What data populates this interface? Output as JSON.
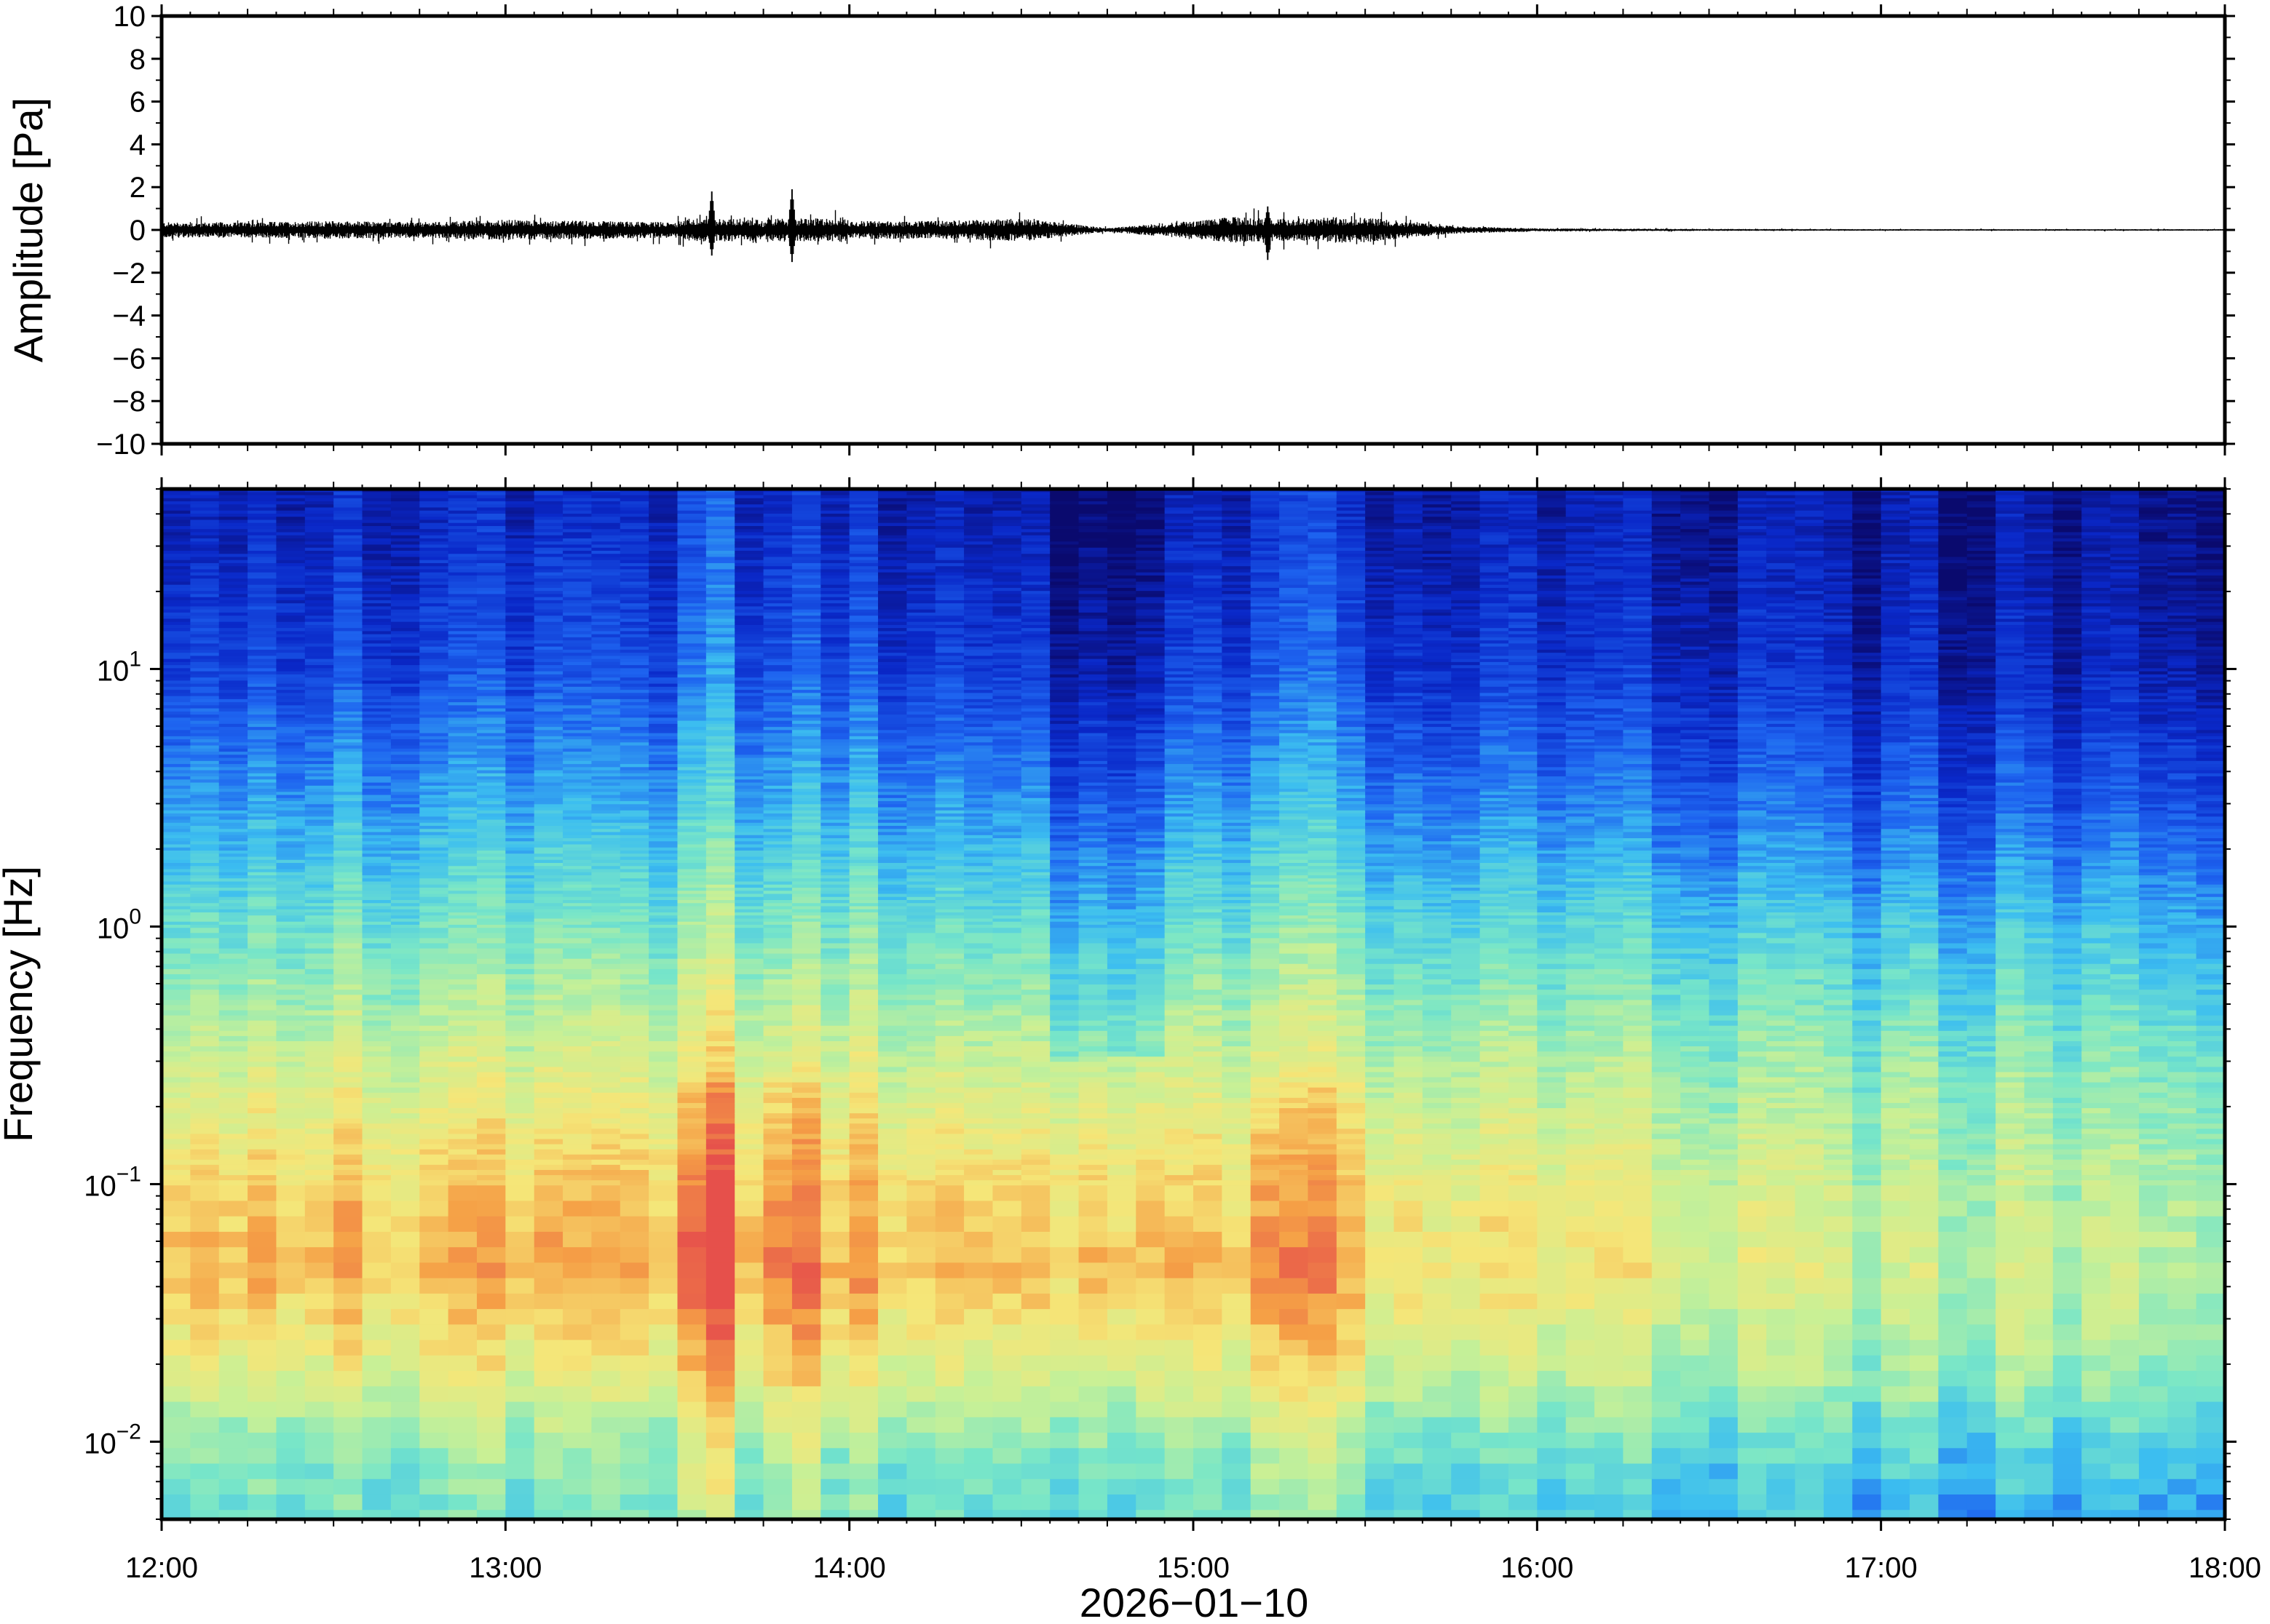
{
  "chart_data": [
    {
      "type": "line",
      "panel": "waveform",
      "title": "",
      "xlabel": "",
      "ylabel": "Amplitude [Pa]",
      "xlim": [
        "12:00",
        "18:00"
      ],
      "ylim": [
        -10,
        10
      ],
      "yticks": [
        "−10",
        "−8",
        "−6",
        "−4",
        "−2",
        "0",
        "2",
        "4",
        "6",
        "8",
        "10"
      ],
      "ytick_values": [
        -10,
        -8,
        -6,
        -4,
        -2,
        0,
        2,
        4,
        6,
        8,
        10
      ],
      "color": "#000000",
      "envelope": {
        "x": [
          "12:00",
          "12:15",
          "12:30",
          "12:45",
          "13:00",
          "13:15",
          "13:30",
          "13:36",
          "13:45",
          "13:50",
          "14:00",
          "14:15",
          "14:30",
          "14:45",
          "15:00",
          "15:15",
          "15:30",
          "15:45",
          "16:00",
          "16:30",
          "17:00",
          "17:30",
          "18:00"
        ],
        "half_range": [
          0.3,
          0.3,
          0.35,
          0.3,
          0.4,
          0.35,
          0.3,
          1.6,
          0.3,
          1.6,
          0.35,
          0.35,
          0.45,
          0.08,
          0.35,
          0.7,
          0.5,
          0.15,
          0.06,
          0.04,
          0.03,
          0.03,
          0.03
        ]
      },
      "peaks": [
        {
          "x": "13:36",
          "max": 1.8,
          "min": -1.2
        },
        {
          "x": "13:50",
          "max": 1.9,
          "min": -1.5
        },
        {
          "x": "15:13",
          "max": 1.1,
          "min": -1.4
        }
      ]
    },
    {
      "type": "heatmap",
      "panel": "spectrogram",
      "title": "",
      "xlabel": "2026−01−10",
      "ylabel": "Frequency [Hz]",
      "xlim": [
        "12:00",
        "18:00"
      ],
      "xticks": [
        "12:00",
        "13:00",
        "14:00",
        "15:00",
        "16:00",
        "17:00",
        "18:00"
      ],
      "ylim": [
        0.005,
        50
      ],
      "yscale": "log",
      "yticks": [
        {
          "base": "10",
          "exp": "−2",
          "value": 0.01
        },
        {
          "base": "10",
          "exp": "−1",
          "value": 0.1
        },
        {
          "base": "10",
          "exp": "0",
          "value": 1
        },
        {
          "base": "10",
          "exp": "1",
          "value": 10
        }
      ],
      "colormap": [
        "#0a0a6e",
        "#0a28c8",
        "#1e64f0",
        "#3cbef0",
        "#78e6c8",
        "#c8f096",
        "#f5e678",
        "#f5a046",
        "#e6504b"
      ],
      "power_levels_by_frequency": {
        "frequency_hz": [
          40,
          10,
          3,
          1,
          0.3,
          0.1,
          0.05,
          0.02,
          0.01,
          0.006
        ],
        "level_0_to_1_at_12_00": [
          0.12,
          0.2,
          0.35,
          0.5,
          0.66,
          0.8,
          0.85,
          0.7,
          0.55,
          0.5
        ],
        "level_0_to_1_at_17_00": [
          0.05,
          0.1,
          0.22,
          0.38,
          0.52,
          0.6,
          0.62,
          0.55,
          0.42,
          0.35
        ]
      },
      "events": [
        {
          "x": "13:36",
          "intensity": 0.9
        },
        {
          "x": "13:50",
          "intensity": 1.0
        },
        {
          "x": "15:15",
          "intensity": 0.6
        },
        {
          "x": "15:25",
          "intensity": 0.55
        }
      ]
    }
  ]
}
